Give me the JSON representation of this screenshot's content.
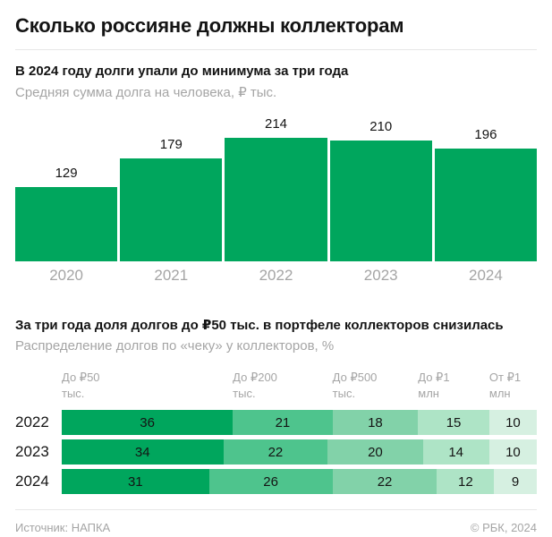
{
  "page": {
    "title": "Сколько россияне должны коллекторам"
  },
  "colors": {
    "brand_green": "#00a65d",
    "green_scale": [
      "#00a65d",
      "#4ec48d",
      "#82d2a9",
      "#aee4c6",
      "#d6f0e1"
    ],
    "text_dark": "#141414",
    "text_gray": "#a5a5a5",
    "divider": "#e7e7e7"
  },
  "chart_data": [
    {
      "type": "bar",
      "title": "В 2024 году долги упали до минимума за три года",
      "subtitle": "Средняя сумма долга на человека, ₽ тыс.",
      "categories": [
        "2020",
        "2021",
        "2022",
        "2023",
        "2024"
      ],
      "values": [
        129,
        179,
        214,
        210,
        196
      ],
      "ylim": [
        0,
        214
      ],
      "bar_color": "#00a65d",
      "value_labels_shown": true,
      "grid": false,
      "legend": "none"
    },
    {
      "type": "bar",
      "variant": "stacked-horizontal-percent",
      "title": "За три года доля долгов до ₽50 тыс. в портфеле коллекторов снизилась",
      "subtitle": "Распределение долгов по «чеку» у коллекторов, %",
      "categories": [
        "2022",
        "2023",
        "2024"
      ],
      "segment_headers": [
        {
          "line1": "До ₽50",
          "line2": "тыс."
        },
        {
          "line1": "До ₽200",
          "line2": "тыс."
        },
        {
          "line1": "До ₽500",
          "line2": "тыс."
        },
        {
          "line1": "До ₽1",
          "line2": "млн"
        },
        {
          "line1": "От ₽1",
          "line2": "млн"
        }
      ],
      "series": [
        {
          "name": "2022",
          "values": [
            36,
            21,
            18,
            15,
            10
          ]
        },
        {
          "name": "2023",
          "values": [
            34,
            22,
            20,
            14,
            10
          ]
        },
        {
          "name": "2024",
          "values": [
            31,
            26,
            22,
            12,
            9
          ]
        }
      ],
      "segment_colors": [
        "#00a65d",
        "#4ec48d",
        "#82d2a9",
        "#aee4c6",
        "#d6f0e1"
      ],
      "xlim": [
        0,
        100
      ],
      "grid": false,
      "legend": "top-headers"
    }
  ],
  "footer": {
    "source": "Источник: НАПКА",
    "copyright": "© РБК, 2024"
  }
}
